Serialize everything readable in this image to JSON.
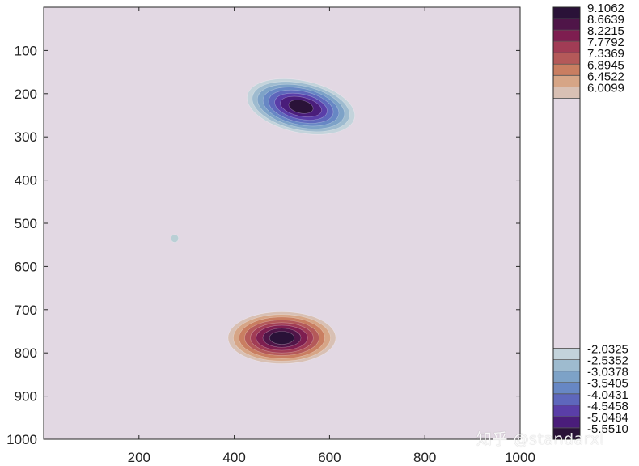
{
  "chart_data": {
    "type": "heatmap",
    "subtype": "filled-contour",
    "background_color": "#e2d8e3",
    "xlim": [
      0,
      1000
    ],
    "ylim": [
      0,
      1000
    ],
    "y_reversed": true,
    "x_ticks": [
      200,
      400,
      600,
      800,
      1000
    ],
    "y_ticks": [
      100,
      200,
      300,
      400,
      500,
      600,
      700,
      800,
      900,
      1000
    ],
    "features": [
      {
        "kind": "negative-well",
        "center": [
          540,
          230
        ],
        "radii": [
          [
            115,
            60
          ],
          [
            104,
            54
          ],
          [
            93,
            48
          ],
          [
            81,
            42
          ],
          [
            69,
            36
          ],
          [
            56,
            29
          ],
          [
            44,
            22
          ],
          [
            26,
            15
          ]
        ],
        "rotation": 12,
        "level_colors": [
          "#c3d3db",
          "#9ebbcf",
          "#7da2c7",
          "#6787c4",
          "#5e67bc",
          "#5a3ea8",
          "#4a1d7a",
          "#2a1238"
        ]
      },
      {
        "kind": "positive-peak",
        "center": [
          500,
          765
        ],
        "radii": [
          [
            113,
            60
          ],
          [
            102,
            54
          ],
          [
            90,
            48
          ],
          [
            78,
            41
          ],
          [
            66,
            35
          ],
          [
            54,
            29
          ],
          [
            40,
            22
          ],
          [
            26,
            15
          ]
        ],
        "rotation": 0,
        "level_colors": [
          "#d8c0b4",
          "#d6a586",
          "#c97e61",
          "#b45959",
          "#a13c55",
          "#7e1e50",
          "#4f1548",
          "#2a1238"
        ]
      },
      {
        "kind": "small-blip",
        "center": [
          275,
          535
        ],
        "radii": [
          [
            8,
            9
          ]
        ],
        "rotation": 0,
        "level_colors": [
          "#b9cfd5"
        ]
      }
    ],
    "colorbar": {
      "positive_labels": [
        "9.1062",
        "8.6639",
        "8.2215",
        "7.7792",
        "7.3369",
        "6.8945",
        "6.4522",
        "6.0099"
      ],
      "positive_colors": [
        "#2a1238",
        "#4f1548",
        "#7e1e50",
        "#a13c55",
        "#b45959",
        "#c97e61",
        "#d6a586",
        "#d8c0b4"
      ],
      "negative_labels": [
        "-2.0325",
        "-2.5352",
        "-3.0378",
        "-3.5405",
        "-4.0431",
        "-4.5458",
        "-5.0484",
        "-5.5510"
      ],
      "negative_colors": [
        "#c3d3db",
        "#9ebbcf",
        "#7da2c7",
        "#6787c4",
        "#5e67bc",
        "#5a3ea8",
        "#4a1d7a",
        "#2a1238"
      ]
    }
  },
  "watermark": "知乎 @standarxl"
}
